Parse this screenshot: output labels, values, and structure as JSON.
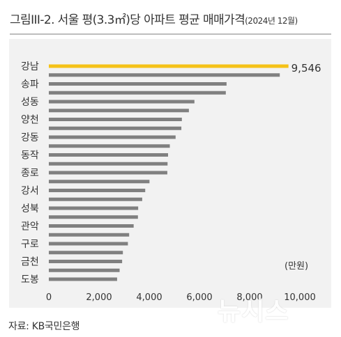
{
  "title": {
    "main": "그림III-2. 서울 평(3.3㎡)당 아파트 평균 매매가격",
    "sub": "(2024년 12월)"
  },
  "source": "자료: KB국민은행",
  "watermark": "뉴시스",
  "colors": {
    "bar": "#808080",
    "highlight": "#f5c218",
    "panel": "#f2f2f2"
  },
  "chart_data": {
    "type": "bar",
    "orientation": "horizontal",
    "title": "그림III-2. 서울 평(3.3㎡)당 아파트 평균 매매가격(2024년 12월)",
    "unit_label": "(만원)",
    "xlim": [
      0,
      10000
    ],
    "xticks": [
      "0",
      "2,000",
      "4,000",
      "6,000",
      "8,000",
      "10,000"
    ],
    "xtick_values": [
      0,
      2000,
      4000,
      6000,
      8000,
      10000
    ],
    "grid": false,
    "bar_values": [
      9546,
      9200,
      7080,
      7050,
      5800,
      5580,
      5300,
      5280,
      5050,
      4820,
      4750,
      4730,
      4720,
      4010,
      3840,
      3720,
      3560,
      3550,
      3380,
      3200,
      3150,
      2950,
      2920,
      2820,
      2720
    ],
    "highlight_index": 0,
    "data_labels": [
      {
        "bar_index": 0,
        "text": "9,546"
      }
    ],
    "category_labels": [
      {
        "text": "강남",
        "bar_index": 0
      },
      {
        "text": "송파",
        "bar_index": 2
      },
      {
        "text": "성동",
        "bar_index": 4
      },
      {
        "text": "양천",
        "bar_index": 6
      },
      {
        "text": "강동",
        "bar_index": 8
      },
      {
        "text": "동작",
        "bar_index": 10
      },
      {
        "text": "종로",
        "bar_index": 12
      },
      {
        "text": "강서",
        "bar_index": 14
      },
      {
        "text": "성북",
        "bar_index": 16
      },
      {
        "text": "관악",
        "bar_index": 18
      },
      {
        "text": "구로",
        "bar_index": 20
      },
      {
        "text": "금천",
        "bar_index": 22
      },
      {
        "text": "도봉",
        "bar_index": 24
      }
    ]
  }
}
